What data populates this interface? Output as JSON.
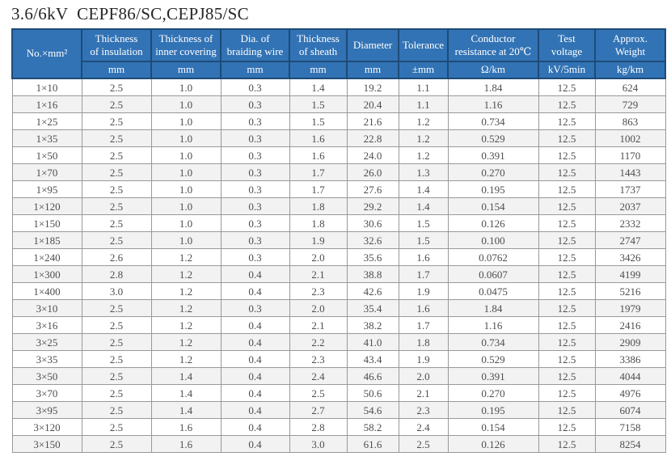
{
  "page": {
    "title": "3.6/6kV  CEPF86/SC,CEPJ85/SC"
  },
  "table": {
    "columns": [
      {
        "label": "No.×mm²",
        "unit": ""
      },
      {
        "label": "Thickness\nof insulation",
        "unit": "mm"
      },
      {
        "label": "Thickness of\ninner covering",
        "unit": "mm"
      },
      {
        "label": "Dia. of\nbraiding wire",
        "unit": "mm"
      },
      {
        "label": "Thickness\nof sheath",
        "unit": "mm"
      },
      {
        "label": "Diameter",
        "unit": "mm"
      },
      {
        "label": "Tolerance",
        "unit": "±mm"
      },
      {
        "label": "Conductor\nresistance at 20℃",
        "unit": "Ω/km"
      },
      {
        "label": "Test\nvoltage",
        "unit": "kV/5min"
      },
      {
        "label": "Approx.\nWeight",
        "unit": "kg/km"
      }
    ],
    "rows": [
      [
        "1×10",
        "2.5",
        "1.0",
        "0.3",
        "1.4",
        "19.2",
        "1.1",
        "1.84",
        "12.5",
        "624"
      ],
      [
        "1×16",
        "2.5",
        "1.0",
        "0.3",
        "1.5",
        "20.4",
        "1.1",
        "1.16",
        "12.5",
        "729"
      ],
      [
        "1×25",
        "2.5",
        "1.0",
        "0.3",
        "1.5",
        "21.6",
        "1.2",
        "0.734",
        "12.5",
        "863"
      ],
      [
        "1×35",
        "2.5",
        "1.0",
        "0.3",
        "1.6",
        "22.8",
        "1.2",
        "0.529",
        "12.5",
        "1002"
      ],
      [
        "1×50",
        "2.5",
        "1.0",
        "0.3",
        "1.6",
        "24.0",
        "1.2",
        "0.391",
        "12.5",
        "1170"
      ],
      [
        "1×70",
        "2.5",
        "1.0",
        "0.3",
        "1.7",
        "26.0",
        "1.3",
        "0.270",
        "12.5",
        "1443"
      ],
      [
        "1×95",
        "2.5",
        "1.0",
        "0.3",
        "1.7",
        "27.6",
        "1.4",
        "0.195",
        "12.5",
        "1737"
      ],
      [
        "1×120",
        "2.5",
        "1.0",
        "0.3",
        "1.8",
        "29.2",
        "1.4",
        "0.154",
        "12.5",
        "2037"
      ],
      [
        "1×150",
        "2.5",
        "1.0",
        "0.3",
        "1.8",
        "30.6",
        "1.5",
        "0.126",
        "12.5",
        "2332"
      ],
      [
        "1×185",
        "2.5",
        "1.0",
        "0.3",
        "1.9",
        "32.6",
        "1.5",
        "0.100",
        "12.5",
        "2747"
      ],
      [
        "1×240",
        "2.6",
        "1.2",
        "0.3",
        "2.0",
        "35.6",
        "1.6",
        "0.0762",
        "12.5",
        "3426"
      ],
      [
        "1×300",
        "2.8",
        "1.2",
        "0.4",
        "2.1",
        "38.8",
        "1.7",
        "0.0607",
        "12.5",
        "4199"
      ],
      [
        "1×400",
        "3.0",
        "1.2",
        "0.4",
        "2.3",
        "42.6",
        "1.9",
        "0.0475",
        "12.5",
        "5216"
      ],
      [
        "3×10",
        "2.5",
        "1.2",
        "0.3",
        "2.0",
        "35.4",
        "1.6",
        "1.84",
        "12.5",
        "1979"
      ],
      [
        "3×16",
        "2.5",
        "1.2",
        "0.4",
        "2.1",
        "38.2",
        "1.7",
        "1.16",
        "12.5",
        "2416"
      ],
      [
        "3×25",
        "2.5",
        "1.2",
        "0.4",
        "2.2",
        "41.0",
        "1.8",
        "0.734",
        "12.5",
        "2909"
      ],
      [
        "3×35",
        "2.5",
        "1.2",
        "0.4",
        "2.3",
        "43.4",
        "1.9",
        "0.529",
        "12.5",
        "3386"
      ],
      [
        "3×50",
        "2.5",
        "1.4",
        "0.4",
        "2.4",
        "46.6",
        "2.0",
        "0.391",
        "12.5",
        "4044"
      ],
      [
        "3×70",
        "2.5",
        "1.4",
        "0.4",
        "2.5",
        "50.6",
        "2.1",
        "0.270",
        "12.5",
        "4976"
      ],
      [
        "3×95",
        "2.5",
        "1.4",
        "0.4",
        "2.7",
        "54.6",
        "2.3",
        "0.195",
        "12.5",
        "6074"
      ],
      [
        "3×120",
        "2.5",
        "1.6",
        "0.4",
        "2.8",
        "58.2",
        "2.4",
        "0.154",
        "12.5",
        "7158"
      ],
      [
        "3×150",
        "2.5",
        "1.6",
        "0.4",
        "3.0",
        "61.6",
        "2.5",
        "0.126",
        "12.5",
        "8254"
      ]
    ],
    "colors": {
      "header_bg": "#3273b5",
      "header_border": "#1d4b77",
      "header_text": "#ffffff",
      "row_stripe": "#f2f2f2",
      "body_border": "#999999",
      "body_text": "#4d4d4d"
    }
  }
}
